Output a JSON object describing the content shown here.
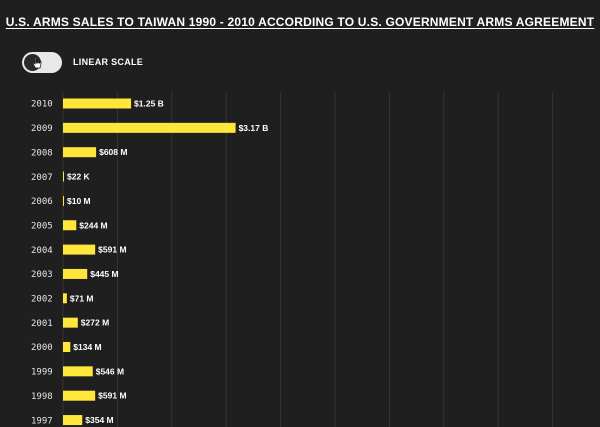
{
  "title": "U.S. ARMS SALES TO TAIWAN 1990 - 2010 ACCORDING TO U.S. GOVERNMENT ARMS AGREEMENT",
  "scale_toggle": {
    "label": "LINEAR SCALE",
    "state": "off"
  },
  "colors": {
    "background": "#1f1f1f",
    "bar": "#ffe63b",
    "grid": "#343434",
    "text": "#ffffff"
  },
  "chart_data": {
    "type": "bar",
    "orientation": "horizontal",
    "title": "U.S. ARMS SALES TO TAIWAN 1990 - 2010 ACCORDING TO U.S. GOVERNMENT ARMS AGREEMENT",
    "xlabel": "",
    "ylabel": "",
    "xlim": [
      0,
      9000000000
    ],
    "grid": true,
    "categories": [
      "2010",
      "2009",
      "2008",
      "2007",
      "2006",
      "2005",
      "2004",
      "2003",
      "2002",
      "2001",
      "2000",
      "1999",
      "1998",
      "1997"
    ],
    "values": [
      1250000000,
      3170000000,
      608000000,
      22000,
      10000000,
      244000000,
      591000000,
      445000000,
      71000000,
      272000000,
      134000000,
      546000000,
      591000000,
      354000000
    ],
    "labels": [
      "$1.25 B",
      "$3.17 B",
      "$608 M",
      "$22 K",
      "$10 M",
      "$244 M",
      "$591 M",
      "$445 M",
      "$71 M",
      "$272 M",
      "$134 M",
      "$546 M",
      "$591 M",
      "$354 M"
    ]
  }
}
